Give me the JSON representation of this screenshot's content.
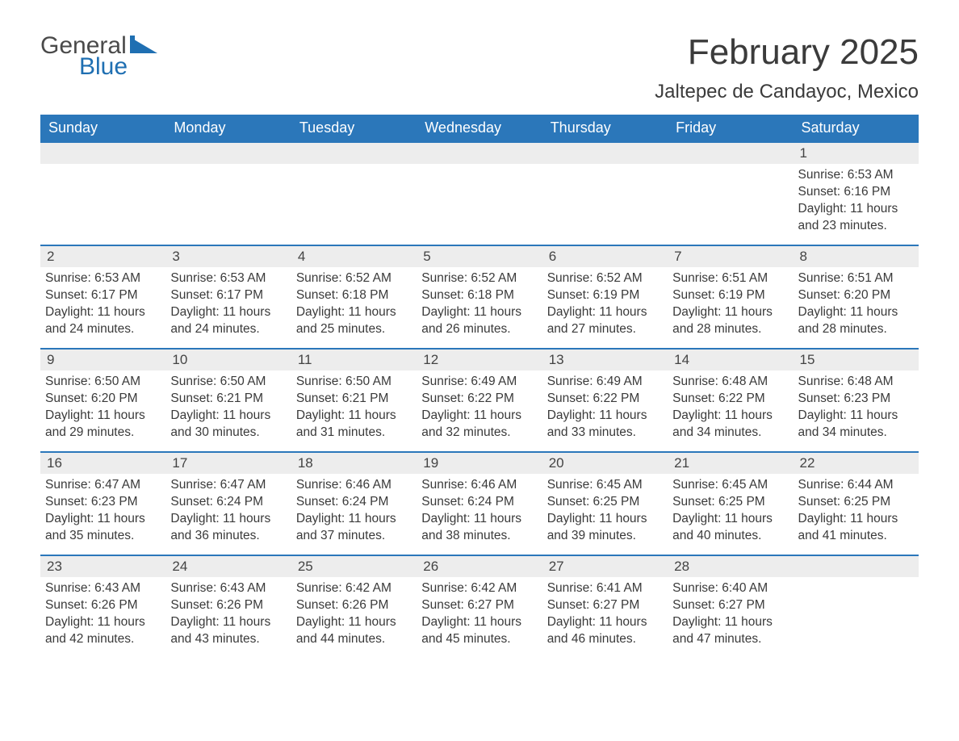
{
  "brand": {
    "word1": "General",
    "word2": "Blue",
    "color2": "#1f6fb2"
  },
  "title": "February 2025",
  "location": "Jaltepec de Candayoc, Mexico",
  "colors": {
    "header_bg": "#2b77ba",
    "header_text": "#ffffff",
    "row_sep": "#2b77ba",
    "daynum_bg": "#ededed",
    "text": "#3a3a3a",
    "page_bg": "#ffffff"
  },
  "typography": {
    "month_title_pt": 44,
    "location_pt": 24,
    "th_pt": 18,
    "daynum_pt": 17,
    "body_pt": 15.5
  },
  "weekdays": [
    "Sunday",
    "Monday",
    "Tuesday",
    "Wednesday",
    "Thursday",
    "Friday",
    "Saturday"
  ],
  "weeks": [
    [
      null,
      null,
      null,
      null,
      null,
      null,
      {
        "n": "1",
        "sunrise": "Sunrise: 6:53 AM",
        "sunset": "Sunset: 6:16 PM",
        "daylight": "Daylight: 11 hours and 23 minutes."
      }
    ],
    [
      {
        "n": "2",
        "sunrise": "Sunrise: 6:53 AM",
        "sunset": "Sunset: 6:17 PM",
        "daylight": "Daylight: 11 hours and 24 minutes."
      },
      {
        "n": "3",
        "sunrise": "Sunrise: 6:53 AM",
        "sunset": "Sunset: 6:17 PM",
        "daylight": "Daylight: 11 hours and 24 minutes."
      },
      {
        "n": "4",
        "sunrise": "Sunrise: 6:52 AM",
        "sunset": "Sunset: 6:18 PM",
        "daylight": "Daylight: 11 hours and 25 minutes."
      },
      {
        "n": "5",
        "sunrise": "Sunrise: 6:52 AM",
        "sunset": "Sunset: 6:18 PM",
        "daylight": "Daylight: 11 hours and 26 minutes."
      },
      {
        "n": "6",
        "sunrise": "Sunrise: 6:52 AM",
        "sunset": "Sunset: 6:19 PM",
        "daylight": "Daylight: 11 hours and 27 minutes."
      },
      {
        "n": "7",
        "sunrise": "Sunrise: 6:51 AM",
        "sunset": "Sunset: 6:19 PM",
        "daylight": "Daylight: 11 hours and 28 minutes."
      },
      {
        "n": "8",
        "sunrise": "Sunrise: 6:51 AM",
        "sunset": "Sunset: 6:20 PM",
        "daylight": "Daylight: 11 hours and 28 minutes."
      }
    ],
    [
      {
        "n": "9",
        "sunrise": "Sunrise: 6:50 AM",
        "sunset": "Sunset: 6:20 PM",
        "daylight": "Daylight: 11 hours and 29 minutes."
      },
      {
        "n": "10",
        "sunrise": "Sunrise: 6:50 AM",
        "sunset": "Sunset: 6:21 PM",
        "daylight": "Daylight: 11 hours and 30 minutes."
      },
      {
        "n": "11",
        "sunrise": "Sunrise: 6:50 AM",
        "sunset": "Sunset: 6:21 PM",
        "daylight": "Daylight: 11 hours and 31 minutes."
      },
      {
        "n": "12",
        "sunrise": "Sunrise: 6:49 AM",
        "sunset": "Sunset: 6:22 PM",
        "daylight": "Daylight: 11 hours and 32 minutes."
      },
      {
        "n": "13",
        "sunrise": "Sunrise: 6:49 AM",
        "sunset": "Sunset: 6:22 PM",
        "daylight": "Daylight: 11 hours and 33 minutes."
      },
      {
        "n": "14",
        "sunrise": "Sunrise: 6:48 AM",
        "sunset": "Sunset: 6:22 PM",
        "daylight": "Daylight: 11 hours and 34 minutes."
      },
      {
        "n": "15",
        "sunrise": "Sunrise: 6:48 AM",
        "sunset": "Sunset: 6:23 PM",
        "daylight": "Daylight: 11 hours and 34 minutes."
      }
    ],
    [
      {
        "n": "16",
        "sunrise": "Sunrise: 6:47 AM",
        "sunset": "Sunset: 6:23 PM",
        "daylight": "Daylight: 11 hours and 35 minutes."
      },
      {
        "n": "17",
        "sunrise": "Sunrise: 6:47 AM",
        "sunset": "Sunset: 6:24 PM",
        "daylight": "Daylight: 11 hours and 36 minutes."
      },
      {
        "n": "18",
        "sunrise": "Sunrise: 6:46 AM",
        "sunset": "Sunset: 6:24 PM",
        "daylight": "Daylight: 11 hours and 37 minutes."
      },
      {
        "n": "19",
        "sunrise": "Sunrise: 6:46 AM",
        "sunset": "Sunset: 6:24 PM",
        "daylight": "Daylight: 11 hours and 38 minutes."
      },
      {
        "n": "20",
        "sunrise": "Sunrise: 6:45 AM",
        "sunset": "Sunset: 6:25 PM",
        "daylight": "Daylight: 11 hours and 39 minutes."
      },
      {
        "n": "21",
        "sunrise": "Sunrise: 6:45 AM",
        "sunset": "Sunset: 6:25 PM",
        "daylight": "Daylight: 11 hours and 40 minutes."
      },
      {
        "n": "22",
        "sunrise": "Sunrise: 6:44 AM",
        "sunset": "Sunset: 6:25 PM",
        "daylight": "Daylight: 11 hours and 41 minutes."
      }
    ],
    [
      {
        "n": "23",
        "sunrise": "Sunrise: 6:43 AM",
        "sunset": "Sunset: 6:26 PM",
        "daylight": "Daylight: 11 hours and 42 minutes."
      },
      {
        "n": "24",
        "sunrise": "Sunrise: 6:43 AM",
        "sunset": "Sunset: 6:26 PM",
        "daylight": "Daylight: 11 hours and 43 minutes."
      },
      {
        "n": "25",
        "sunrise": "Sunrise: 6:42 AM",
        "sunset": "Sunset: 6:26 PM",
        "daylight": "Daylight: 11 hours and 44 minutes."
      },
      {
        "n": "26",
        "sunrise": "Sunrise: 6:42 AM",
        "sunset": "Sunset: 6:27 PM",
        "daylight": "Daylight: 11 hours and 45 minutes."
      },
      {
        "n": "27",
        "sunrise": "Sunrise: 6:41 AM",
        "sunset": "Sunset: 6:27 PM",
        "daylight": "Daylight: 11 hours and 46 minutes."
      },
      {
        "n": "28",
        "sunrise": "Sunrise: 6:40 AM",
        "sunset": "Sunset: 6:27 PM",
        "daylight": "Daylight: 11 hours and 47 minutes."
      },
      null
    ]
  ]
}
